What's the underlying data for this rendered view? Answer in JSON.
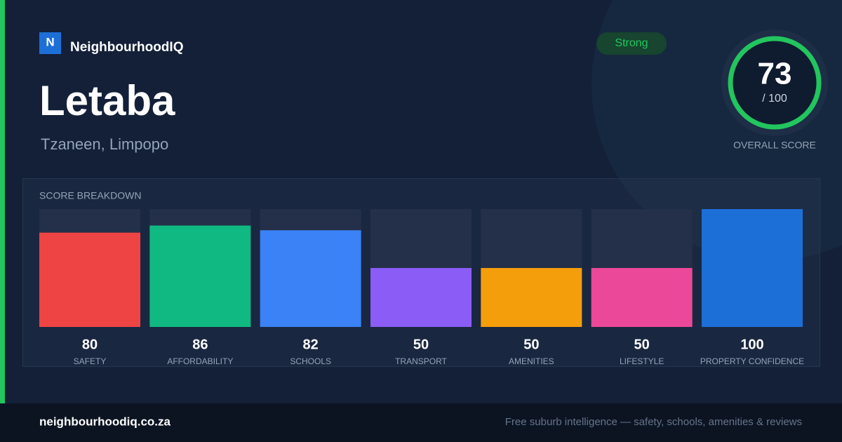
{
  "brand": {
    "logo_letter": "N",
    "name": "NeighbourhoodIQ"
  },
  "title": "Letaba",
  "subtitle": "Tzaneen, Limpopo",
  "badge": "Strong",
  "overall_score": {
    "value": 73,
    "scale_label": "/ 100",
    "caption": "OVERALL SCORE"
  },
  "chart_data": {
    "type": "bar",
    "title": "SCORE BREAKDOWN",
    "categories": [
      "SAFETY",
      "AFFORDABILITY",
      "SCHOOLS",
      "TRANSPORT",
      "AMENITIES",
      "LIFESTYLE",
      "PROPERTY CONFIDENCE"
    ],
    "values": [
      80,
      86,
      82,
      50,
      50,
      50,
      100
    ],
    "colors": [
      "#ef4444",
      "#10b981",
      "#3b82f6",
      "#8b5cf6",
      "#f59e0b",
      "#ec4899",
      "#1d6fd8"
    ],
    "ylim": [
      0,
      100
    ]
  },
  "footer": {
    "site": "neighbourhoodiq.co.za",
    "tagline": "Free suburb intelligence — safety, schools, amenities & reviews"
  }
}
